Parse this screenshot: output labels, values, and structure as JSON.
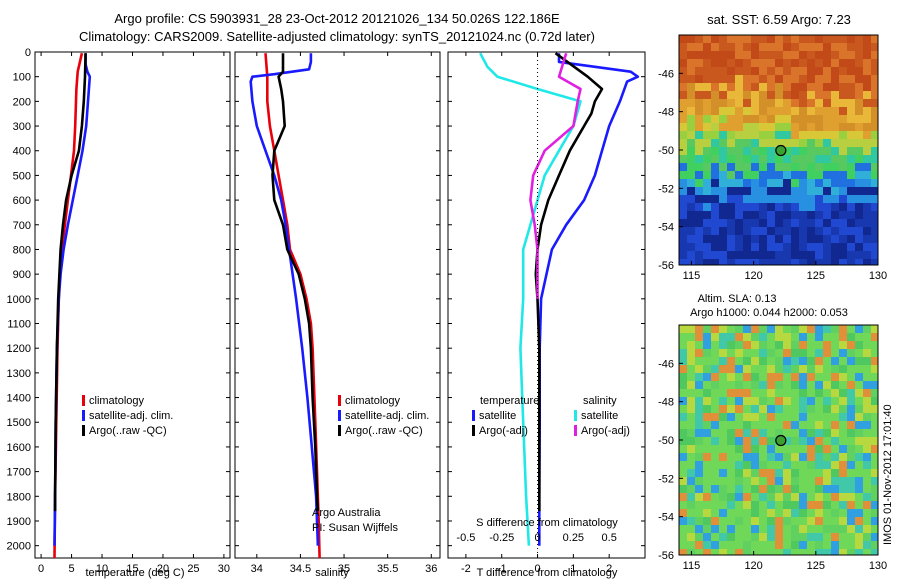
{
  "figure": {
    "title_line1": "Argo profile: CS 5903931_28 23-Oct-2012 20121026_134 50.026S 122.186E",
    "title_line2": "Climatology: CARS2009. Satellite-adjusted climatology: synTS_20121024.nc (0.72d later)",
    "credit_line1": "Argo Australia",
    "credit_line2": "PI: Susan Wijffels",
    "timestamp": "IMOS 01-Nov-2012 17:01:40"
  },
  "colors": {
    "climatology": "#e8000b",
    "satellite": "#1a1aff",
    "argo": "#000000",
    "satellite_salinity": "#20e8e8",
    "argo_salinity": "#e020e0"
  },
  "chart_data": [
    {
      "type": "line",
      "panel": "temperature",
      "xlabel": "temperature (deg C)",
      "ylabel": "",
      "xlim": [
        -1,
        31
      ],
      "ylim": [
        2050,
        0
      ],
      "xticks": [
        "0",
        "5",
        "10",
        "15",
        "20",
        "25",
        "30"
      ],
      "yticks": [
        "0",
        "100",
        "200",
        "300",
        "400",
        "500",
        "600",
        "700",
        "800",
        "900",
        "1000",
        "1100",
        "1200",
        "1300",
        "1400",
        "1500",
        "1600",
        "1700",
        "1800",
        "1900",
        "2000"
      ],
      "legend": [
        "climatology",
        "satellite-adj. clim.",
        "Argo(..raw -QC)"
      ],
      "series": [
        {
          "name": "climatology",
          "color": "#e8000b",
          "depth": [
            5,
            80,
            150,
            300,
            400,
            500,
            600,
            700,
            800,
            900,
            1000,
            1200,
            1500,
            1800,
            2050
          ],
          "values": [
            6.7,
            6.0,
            5.8,
            5.6,
            5.4,
            4.9,
            4.4,
            3.9,
            3.4,
            3.1,
            2.9,
            2.7,
            2.5,
            2.3,
            2.2
          ]
        },
        {
          "name": "satellite-adj. clim.",
          "color": "#1a1aff",
          "depth": [
            5,
            50,
            80,
            100,
            200,
            300,
            400,
            500,
            600,
            700,
            800,
            900,
            1000,
            1200,
            1500,
            1800,
            2000
          ],
          "values": [
            7.3,
            7.3,
            7.6,
            8.0,
            7.7,
            7.4,
            6.8,
            6.0,
            5.2,
            4.4,
            3.7,
            3.2,
            2.9,
            2.6,
            2.4,
            2.3,
            2.2
          ]
        },
        {
          "name": "Argo(..raw -QC)",
          "color": "#000000",
          "depth": [
            5,
            100,
            200,
            300,
            400,
            500,
            600,
            700,
            800,
            900,
            1000,
            1200,
            1500,
            1800,
            1860
          ],
          "values": [
            7.3,
            7.2,
            7.0,
            6.7,
            6.2,
            5.0,
            4.1,
            3.6,
            3.2,
            3.0,
            2.8,
            2.6,
            2.4,
            2.3,
            2.3
          ]
        }
      ]
    },
    {
      "type": "line",
      "panel": "salinity",
      "xlabel": "salinity",
      "ylabel": "",
      "xlim": [
        33.75,
        36.1
      ],
      "ylim": [
        2050,
        0
      ],
      "xticks": [
        "34",
        "34.5",
        "35",
        "35.5",
        "36"
      ],
      "legend": [
        "climatology",
        "satellite-adj. clim.",
        "Argo(..raw -QC)"
      ],
      "series": [
        {
          "name": "climatology",
          "color": "#e8000b",
          "depth": [
            5,
            100,
            200,
            300,
            400,
            500,
            600,
            700,
            800,
            900,
            1000,
            1100,
            1200,
            1300,
            1400,
            1500,
            1700,
            1900,
            2050
          ],
          "values": [
            34.1,
            34.12,
            34.12,
            34.15,
            34.2,
            34.25,
            34.3,
            34.35,
            34.38,
            34.5,
            34.57,
            34.62,
            34.64,
            34.65,
            34.66,
            34.67,
            34.69,
            34.71,
            34.72
          ]
        },
        {
          "name": "satellite-adj. clim.",
          "color": "#1a1aff",
          "depth": [
            5,
            40,
            70,
            90,
            100,
            120,
            200,
            300,
            400,
            500,
            600,
            700,
            800,
            900,
            1000,
            1200,
            1400,
            1600,
            1800,
            2000
          ],
          "values": [
            34.62,
            34.62,
            34.6,
            34.2,
            33.95,
            33.93,
            33.95,
            34.0,
            34.1,
            34.2,
            34.28,
            34.33,
            34.37,
            34.41,
            34.45,
            34.52,
            34.58,
            34.63,
            34.68,
            34.7
          ]
        },
        {
          "name": "Argo(..raw -QC)",
          "color": "#000000",
          "depth": [
            5,
            80,
            100,
            150,
            200,
            300,
            400,
            500,
            600,
            700,
            800,
            900,
            1000,
            1100,
            1200,
            1400,
            1600,
            1800,
            1860
          ],
          "values": [
            34.3,
            34.3,
            34.25,
            34.28,
            34.3,
            34.32,
            34.2,
            34.18,
            34.2,
            34.3,
            34.35,
            34.48,
            34.55,
            34.6,
            34.62,
            34.64,
            34.67,
            34.69,
            34.7
          ]
        }
      ]
    },
    {
      "type": "line",
      "panel": "difference",
      "xlabel": "T difference from climatology",
      "xlabel_top": "S difference from climatology",
      "xlim": [
        -2.5,
        3
      ],
      "ylim": [
        2050,
        0
      ],
      "xticks_T": [
        "-2",
        "-1",
        "0",
        "1",
        "2"
      ],
      "xticks_S": [
        "-0.5",
        "-0.25",
        "0",
        "0.25",
        "0.5"
      ],
      "legend_temperature_title": "temperature",
      "legend_salinity_title": "salinity",
      "legend": [
        "satellite",
        "Argo(-adj)",
        "satellite",
        "Argo(-adj)"
      ],
      "series": [
        {
          "name": "temperature satellite",
          "color": "#1a1aff",
          "depth": [
            5,
            40,
            60,
            80,
            100,
            120,
            200,
            300,
            400,
            500,
            600,
            700,
            800,
            900,
            1000,
            1200,
            1500,
            1800,
            2000
          ],
          "values": [
            0.6,
            0.6,
            1.6,
            2.6,
            2.8,
            2.5,
            2.3,
            2.0,
            1.8,
            1.6,
            1.3,
            0.8,
            0.4,
            0.25,
            0.1,
            0.06,
            0.06,
            0.05,
            0.05
          ]
        },
        {
          "name": "temperature Argo(-adj)",
          "color": "#000000",
          "depth": [
            5,
            100,
            150,
            200,
            250,
            300,
            400,
            500,
            600,
            700,
            800,
            900,
            1000,
            1200,
            1500,
            1860
          ],
          "values": [
            0.5,
            1.4,
            1.8,
            1.6,
            1.5,
            1.3,
            0.9,
            0.6,
            0.3,
            0.1,
            0.0,
            -0.05,
            0.0,
            0.05,
            0.05,
            0.05
          ]
        },
        {
          "name": "salinity satellite",
          "color": "#20e8e8",
          "depth": [
            5,
            60,
            100,
            150,
            200,
            300,
            400,
            500,
            600,
            700,
            800,
            900,
            1000,
            1200,
            1500,
            1800,
            2000
          ],
          "values": [
            -0.4,
            -0.35,
            -0.28,
            0.0,
            0.3,
            0.25,
            0.15,
            0.05,
            0.0,
            -0.05,
            -0.1,
            -0.1,
            -0.1,
            -0.12,
            -0.1,
            -0.08,
            -0.06
          ]
        },
        {
          "name": "salinity Argo(-adj)",
          "color": "#e020e0",
          "depth": [
            5,
            100,
            150,
            200,
            300,
            400,
            500,
            600,
            700,
            800,
            900,
            1000
          ],
          "values": [
            0.2,
            0.15,
            0.3,
            0.28,
            0.25,
            0.05,
            -0.03,
            -0.05,
            -0.02,
            0.0,
            0.0,
            0.0
          ]
        }
      ]
    },
    {
      "type": "heatmap",
      "panel": "sst_map",
      "title": "sat. SST: 6.59 Argo: 7.23",
      "xlim": [
        114,
        130
      ],
      "ylim": [
        -56,
        -44
      ],
      "xticks": [
        "115",
        "120",
        "125",
        "130"
      ],
      "yticks": [
        "-46",
        "-48",
        "-50",
        "-52",
        "-54",
        "-56"
      ],
      "argo_position": {
        "lon": 122.186,
        "lat": -50.026
      }
    },
    {
      "type": "heatmap",
      "panel": "sla_map",
      "title_line1": "Altim. SLA: 0.13",
      "title_line2": "Argo h1000: 0.044 h2000: 0.053",
      "xlim": [
        114,
        130
      ],
      "ylim": [
        -56,
        -44
      ],
      "xticks": [
        "115",
        "120",
        "125",
        "130"
      ],
      "yticks": [
        "-46",
        "-48",
        "-50",
        "-52",
        "-54",
        "-56"
      ],
      "argo_position": {
        "lon": 122.186,
        "lat": -50.026
      }
    }
  ]
}
